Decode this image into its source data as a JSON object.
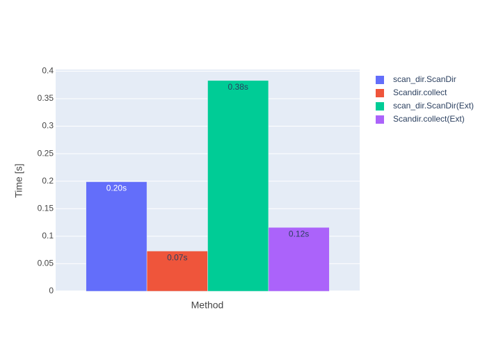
{
  "chart_data": {
    "type": "bar",
    "categories": [
      null
    ],
    "xlabel": "Method",
    "ylabel": "Time [s]",
    "ylim": [
      0,
      0.403
    ],
    "yticks": [
      0,
      0.05,
      0.1,
      0.15,
      0.2,
      0.25,
      0.3,
      0.35,
      0.4
    ],
    "grid": true,
    "legend": "top-right",
    "series": [
      {
        "name": "scan_dir.ScanDir",
        "color": "#636efa",
        "values": [
          0.199
        ],
        "value_labels": [
          "0.20s"
        ]
      },
      {
        "name": "Scandir.collect",
        "color": "#ef553b",
        "values": [
          0.073
        ],
        "value_labels": [
          "0.07s"
        ]
      },
      {
        "name": "scan_dir.ScanDir(Ext)",
        "color": "#00cc96",
        "values": [
          0.383
        ],
        "value_labels": [
          "0.38s"
        ]
      },
      {
        "name": "Scandir.collect(Ext)",
        "color": "#ab63fa",
        "values": [
          0.116
        ],
        "value_labels": [
          "0.12s"
        ]
      }
    ]
  }
}
